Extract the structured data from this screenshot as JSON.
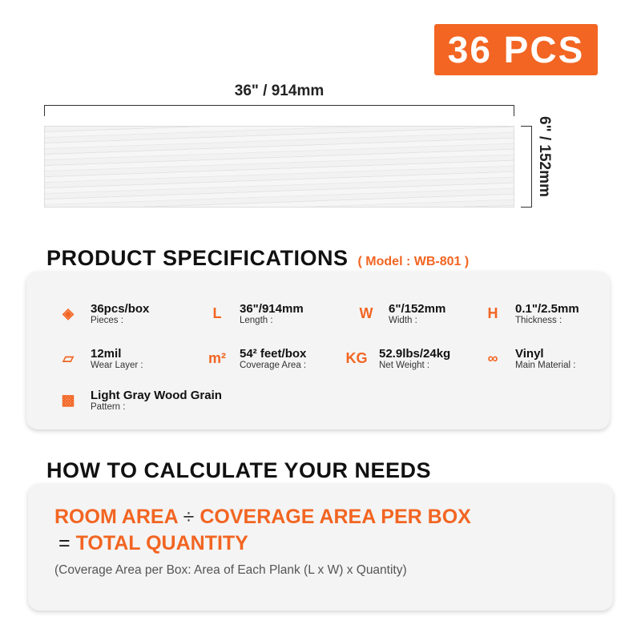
{
  "badge": "36 PCS",
  "dims": {
    "length": "36\" / 914mm",
    "width": "6\" / 152mm"
  },
  "specs": {
    "title": "PRODUCT SPECIFICATIONS",
    "model": "( Model : WB-801 )",
    "items": [
      {
        "icon": "layers-icon",
        "value": "36pcs/box",
        "label": "Pieces :"
      },
      {
        "icon": "length-icon",
        "value": "36\"/914mm",
        "label": "Length :"
      },
      {
        "icon": "width-icon",
        "value": "6\"/152mm",
        "label": "Width :"
      },
      {
        "icon": "thickness-icon",
        "value": "0.1\"/2.5mm",
        "label": "Thickness :"
      },
      {
        "icon": "wear-layer-icon",
        "value": "12mil",
        "label": "Wear Layer :"
      },
      {
        "icon": "coverage-area-icon",
        "value": "54² feet/box",
        "label": "Coverage Area :"
      },
      {
        "icon": "weight-icon",
        "value": "52.9lbs/24kg",
        "label": "Net Weight :"
      },
      {
        "icon": "material-icon",
        "value": "Vinyl",
        "label": "Main Material :"
      },
      {
        "icon": "wood-grain-icon",
        "value": "Light Gray Wood Grain",
        "label": "Pattern :"
      }
    ]
  },
  "calc": {
    "title": "HOW TO CALCULATE YOUR NEEDS",
    "room": "ROOM AREA",
    "div": "÷",
    "coverage": "COVERAGE AREA PER BOX",
    "eq": "=",
    "total": "TOTAL QUANTITY",
    "note": "(Coverage Area per Box: Area of Each Plank (L x W) x Quantity)"
  },
  "colors": {
    "accent": "#f26522"
  }
}
